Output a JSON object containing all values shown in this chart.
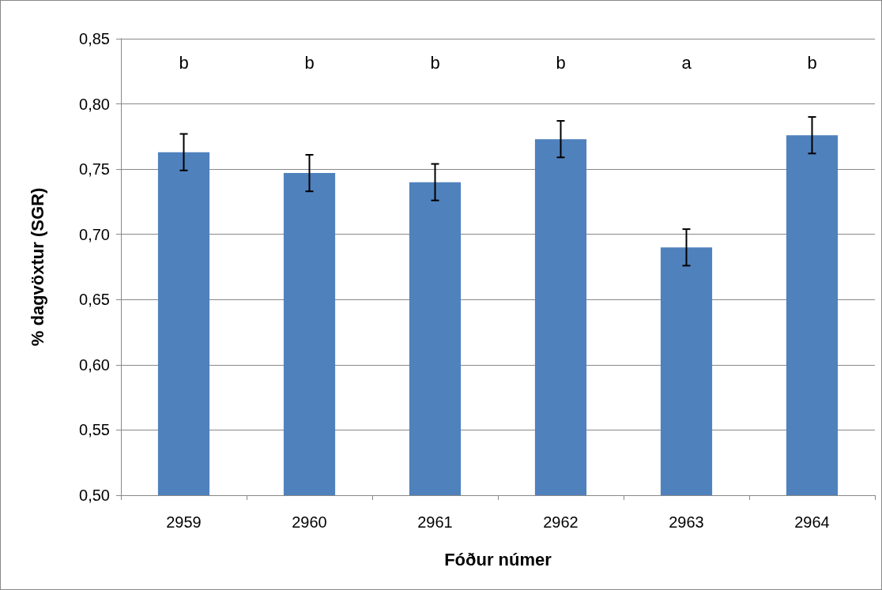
{
  "chart_data": {
    "type": "bar",
    "xlabel": "Fóður númer",
    "ylabel": "% dagvöxtur (SGR)",
    "categories": [
      "2959",
      "2960",
      "2961",
      "2962",
      "2963",
      "2964"
    ],
    "values": [
      0.763,
      0.747,
      0.74,
      0.773,
      0.69,
      0.776
    ],
    "errors": [
      0.014,
      0.014,
      0.014,
      0.014,
      0.014,
      0.014
    ],
    "color": "#4f81bd",
    "ylim": [
      0.5,
      0.85
    ],
    "yticks": [
      {
        "value": 0.5,
        "label": "0,50"
      },
      {
        "value": 0.55,
        "label": "0,55"
      },
      {
        "value": 0.6,
        "label": "0,60"
      },
      {
        "value": 0.65,
        "label": "0,65"
      },
      {
        "value": 0.7,
        "label": "0,70"
      },
      {
        "value": 0.75,
        "label": "0,75"
      },
      {
        "value": 0.8,
        "label": "0,80"
      },
      {
        "value": 0.85,
        "label": "0,85"
      }
    ],
    "grid": "y",
    "annotations": [
      "b",
      "b",
      "b",
      "b",
      "a",
      "b"
    ]
  }
}
